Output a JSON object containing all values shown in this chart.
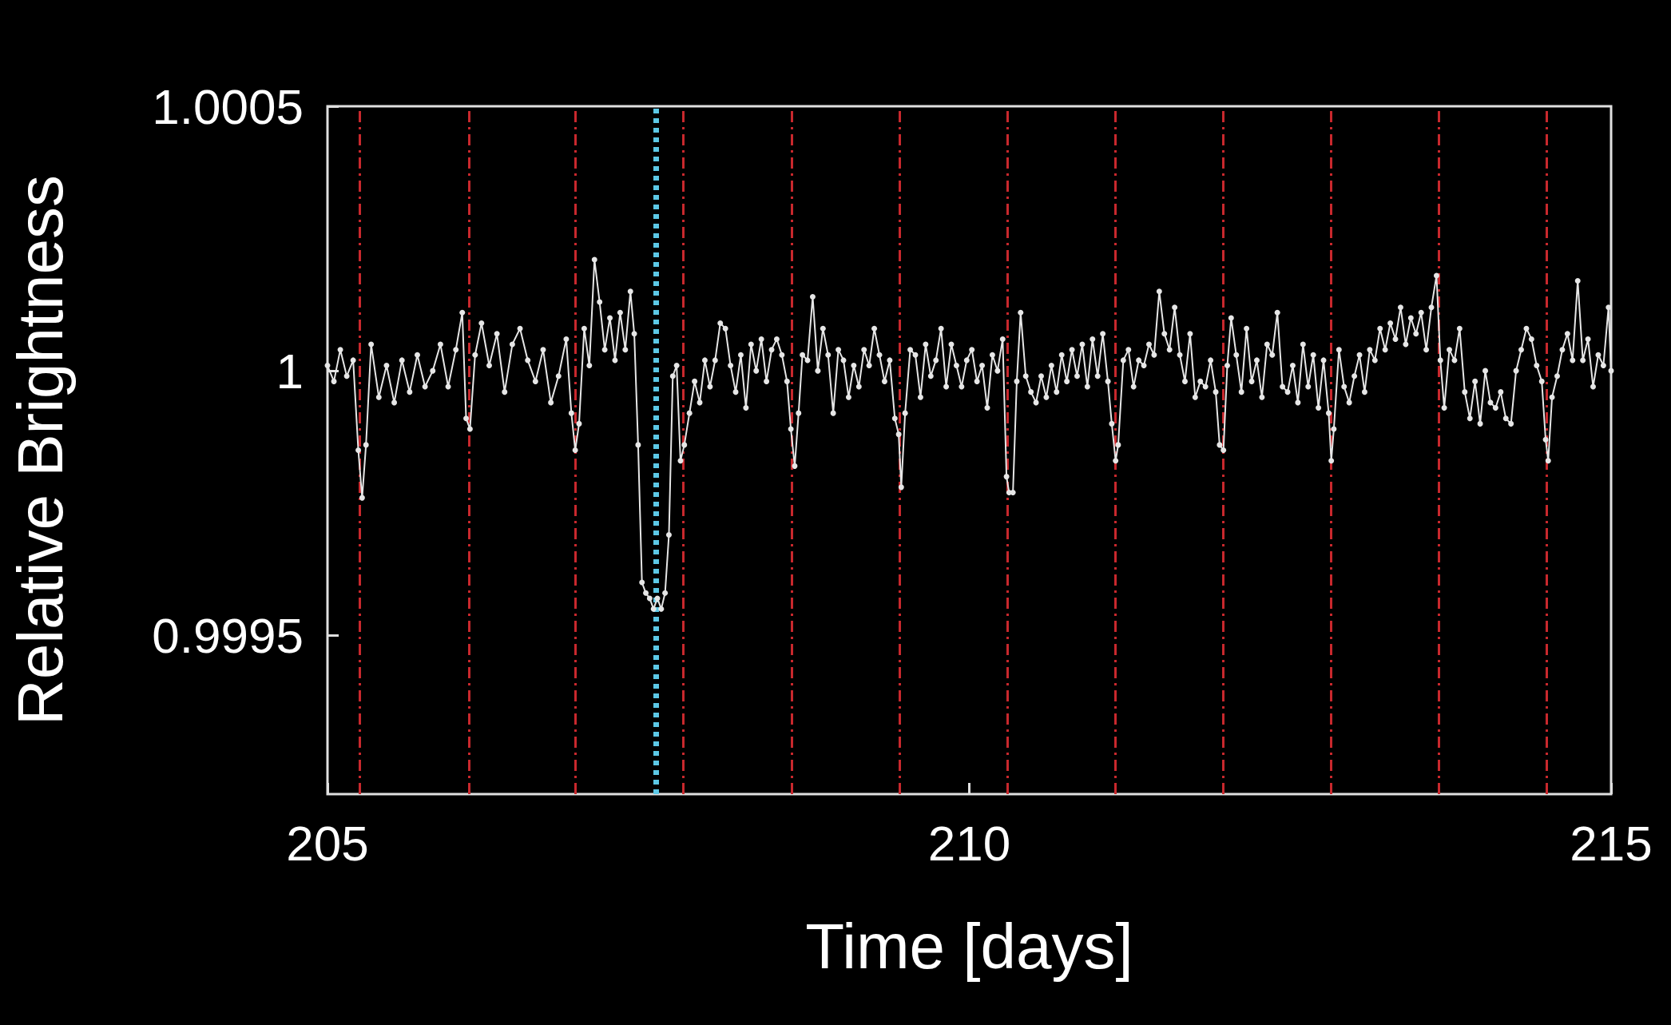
{
  "chart_data": {
    "type": "line",
    "xlabel": "Time [days]",
    "ylabel": "Relative Brightness",
    "xlim": [
      205,
      215
    ],
    "xticks": [
      205,
      210,
      215
    ],
    "ylim": [
      0.9992,
      1.0005
    ],
    "yticks": [
      0.9995,
      1,
      1.0005
    ],
    "grid": false,
    "marker": "circle",
    "line_style": "solid",
    "series": [
      {
        "color": "#e6e6e6",
        "x": [
          205.0,
          205.05,
          205.1,
          205.15,
          205.2,
          205.24,
          205.27,
          205.3,
          205.34,
          205.4,
          205.46,
          205.52,
          205.58,
          205.64,
          205.7,
          205.76,
          205.82,
          205.88,
          205.94,
          206.0,
          206.05,
          206.08,
          206.11,
          206.15,
          206.2,
          206.26,
          206.32,
          206.38,
          206.44,
          206.5,
          206.56,
          206.62,
          206.68,
          206.74,
          206.8,
          206.86,
          206.9,
          206.93,
          206.96,
          207.0,
          207.04,
          207.08,
          207.12,
          207.16,
          207.2,
          207.24,
          207.28,
          207.32,
          207.36,
          207.39,
          207.42,
          207.45,
          207.48,
          207.51,
          207.54,
          207.57,
          207.6,
          207.63,
          207.66,
          207.69,
          207.72,
          207.75,
          207.78,
          207.82,
          207.86,
          207.9,
          207.94,
          207.98,
          208.02,
          208.06,
          208.1,
          208.14,
          208.18,
          208.22,
          208.26,
          208.3,
          208.34,
          208.38,
          208.42,
          208.46,
          208.5,
          208.54,
          208.58,
          208.61,
          208.64,
          208.67,
          208.7,
          208.74,
          208.78,
          208.82,
          208.86,
          208.9,
          208.94,
          208.98,
          209.02,
          209.06,
          209.1,
          209.14,
          209.18,
          209.22,
          209.26,
          209.3,
          209.34,
          209.38,
          209.42,
          209.45,
          209.47,
          209.5,
          209.54,
          209.58,
          209.62,
          209.66,
          209.7,
          209.74,
          209.78,
          209.82,
          209.86,
          209.9,
          209.94,
          209.98,
          210.02,
          210.06,
          210.1,
          210.14,
          210.18,
          210.22,
          210.26,
          210.29,
          210.31,
          210.34,
          210.37,
          210.4,
          210.44,
          210.48,
          210.52,
          210.56,
          210.6,
          210.64,
          210.68,
          210.72,
          210.76,
          210.8,
          210.84,
          210.88,
          210.92,
          210.96,
          211.0,
          211.04,
          211.08,
          211.11,
          211.14,
          211.16,
          211.2,
          211.24,
          211.28,
          211.32,
          211.36,
          211.4,
          211.44,
          211.48,
          211.52,
          211.56,
          211.6,
          211.64,
          211.68,
          211.72,
          211.76,
          211.8,
          211.84,
          211.88,
          211.92,
          211.95,
          211.98,
          212.01,
          212.04,
          212.08,
          212.12,
          212.16,
          212.2,
          212.24,
          212.28,
          212.32,
          212.36,
          212.4,
          212.44,
          212.48,
          212.52,
          212.56,
          212.6,
          212.64,
          212.68,
          212.72,
          212.76,
          212.8,
          212.82,
          212.84,
          212.88,
          212.92,
          212.96,
          213.0,
          213.04,
          213.08,
          213.12,
          213.16,
          213.2,
          213.24,
          213.28,
          213.32,
          213.36,
          213.4,
          213.44,
          213.48,
          213.52,
          213.56,
          213.6,
          213.64,
          213.67,
          213.7,
          213.74,
          213.78,
          213.82,
          213.86,
          213.9,
          213.94,
          213.98,
          214.02,
          214.06,
          214.1,
          214.14,
          214.18,
          214.22,
          214.26,
          214.3,
          214.34,
          214.38,
          214.42,
          214.46,
          214.49,
          214.51,
          214.54,
          214.58,
          214.62,
          214.66,
          214.7,
          214.74,
          214.78,
          214.82,
          214.86,
          214.9,
          214.94,
          214.98,
          215.0
        ],
        "values": [
          1.00001,
          0.99998,
          1.00004,
          0.99999,
          1.00002,
          0.99985,
          0.99976,
          0.99986,
          1.00005,
          0.99995,
          1.00001,
          0.99994,
          1.00002,
          0.99996,
          1.00003,
          0.99997,
          1.0,
          1.00005,
          0.99997,
          1.00004,
          1.00011,
          0.99991,
          0.99989,
          1.00003,
          1.00009,
          1.00001,
          1.00007,
          0.99996,
          1.00005,
          1.00008,
          1.00002,
          0.99998,
          1.00004,
          0.99994,
          0.99999,
          1.00006,
          0.99992,
          0.99985,
          0.9999,
          1.00008,
          1.00001,
          1.00021,
          1.00013,
          1.00004,
          1.0001,
          1.00002,
          1.00011,
          1.00004,
          1.00015,
          1.00007,
          0.99986,
          0.9996,
          0.99958,
          0.99957,
          0.99955,
          0.99957,
          0.99955,
          0.99958,
          0.99969,
          0.99999,
          1.00001,
          0.99983,
          0.99986,
          0.99992,
          0.99998,
          0.99994,
          1.00002,
          0.99997,
          1.00002,
          1.00009,
          1.00008,
          1.00001,
          0.99996,
          1.00003,
          0.99993,
          1.00005,
          1.0,
          1.00006,
          0.99998,
          1.00004,
          1.00006,
          1.00003,
          0.99998,
          0.99989,
          0.99982,
          0.99992,
          1.00003,
          1.00002,
          1.00014,
          1.0,
          1.00008,
          1.00003,
          0.99992,
          1.00004,
          1.00002,
          0.99995,
          1.00001,
          0.99997,
          1.00004,
          1.00001,
          1.00008,
          1.00003,
          0.99998,
          1.00002,
          0.99991,
          0.99988,
          0.99978,
          0.99992,
          1.00004,
          1.00003,
          0.99995,
          1.00005,
          0.99999,
          1.00002,
          1.00008,
          0.99997,
          1.00005,
          1.00001,
          0.99997,
          1.00002,
          1.00004,
          0.99998,
          1.00001,
          0.99993,
          1.00003,
          1.0,
          1.00006,
          0.9998,
          0.99977,
          0.99977,
          0.99998,
          1.00011,
          0.99999,
          0.99996,
          0.99994,
          0.99999,
          0.99995,
          1.00001,
          0.99996,
          1.00003,
          0.99998,
          1.00004,
          0.99999,
          1.00005,
          0.99997,
          1.00006,
          0.99999,
          1.00007,
          0.99998,
          0.9999,
          0.99983,
          0.99986,
          1.00002,
          1.00004,
          0.99997,
          1.00002,
          1.00001,
          1.00005,
          1.00003,
          1.00015,
          1.00007,
          1.00004,
          1.00012,
          1.00003,
          0.99998,
          1.00007,
          0.99995,
          0.99998,
          0.99997,
          1.00002,
          0.99996,
          0.99986,
          0.99985,
          1.00001,
          1.0001,
          1.00003,
          0.99996,
          1.00008,
          0.99998,
          1.00002,
          0.99995,
          1.00005,
          1.00003,
          1.00011,
          0.99997,
          0.99996,
          1.00001,
          0.99994,
          1.00005,
          0.99997,
          1.00003,
          0.99993,
          1.00002,
          0.99992,
          0.99983,
          0.99989,
          1.00004,
          0.99997,
          0.99994,
          0.99999,
          1.00003,
          0.99996,
          1.00004,
          1.00002,
          1.00008,
          1.00004,
          1.00009,
          1.00006,
          1.00012,
          1.00005,
          1.0001,
          1.00007,
          1.00011,
          1.00004,
          1.00012,
          1.00018,
          1.00002,
          0.99993,
          1.00004,
          1.00002,
          1.00008,
          0.99996,
          0.99991,
          0.99998,
          0.9999,
          1.0,
          0.99994,
          0.99993,
          0.99996,
          0.99991,
          0.9999,
          1.0,
          1.00004,
          1.00008,
          1.00006,
          1.00001,
          0.99998,
          0.99987,
          0.99983,
          0.99995,
          0.99999,
          1.00004,
          1.00007,
          1.00002,
          1.00017,
          1.00002,
          1.00006,
          0.99997,
          1.00003,
          1.00001,
          1.00012,
          1.0
        ]
      }
    ],
    "ref_lines": [
      {
        "axis": "x",
        "value": 205.25,
        "color": "#c8282d",
        "line_style": "dashed"
      },
      {
        "axis": "x",
        "value": 206.1,
        "color": "#c8282d",
        "line_style": "dashed"
      },
      {
        "axis": "x",
        "value": 206.93,
        "color": "#c8282d",
        "line_style": "dashed"
      },
      {
        "axis": "x",
        "value": 207.77,
        "color": "#c8282d",
        "line_style": "dashed"
      },
      {
        "axis": "x",
        "value": 208.62,
        "color": "#c8282d",
        "line_style": "dashed"
      },
      {
        "axis": "x",
        "value": 209.46,
        "color": "#c8282d",
        "line_style": "dashed"
      },
      {
        "axis": "x",
        "value": 210.3,
        "color": "#c8282d",
        "line_style": "dashed"
      },
      {
        "axis": "x",
        "value": 211.14,
        "color": "#c8282d",
        "line_style": "dashed"
      },
      {
        "axis": "x",
        "value": 211.98,
        "color": "#c8282d",
        "line_style": "dashed"
      },
      {
        "axis": "x",
        "value": 212.82,
        "color": "#c8282d",
        "line_style": "dashed"
      },
      {
        "axis": "x",
        "value": 213.66,
        "color": "#c8282d",
        "line_style": "dashed"
      },
      {
        "axis": "x",
        "value": 214.5,
        "color": "#c8282d",
        "line_style": "dashed"
      },
      {
        "axis": "x",
        "value": 207.56,
        "color": "#5cc8e6",
        "line_style": "dotted"
      }
    ]
  }
}
